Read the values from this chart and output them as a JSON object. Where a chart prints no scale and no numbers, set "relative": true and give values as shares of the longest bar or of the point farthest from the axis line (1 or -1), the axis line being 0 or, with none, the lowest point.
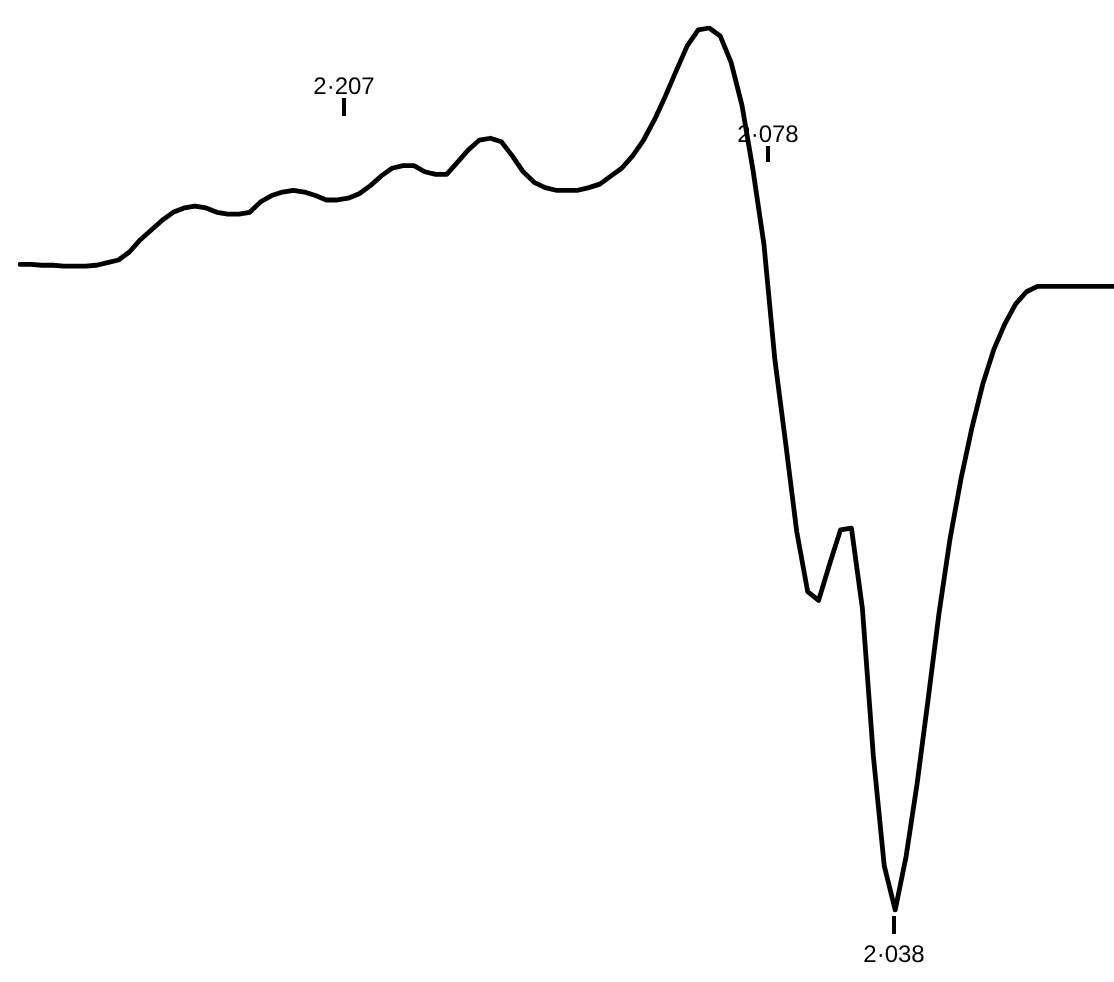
{
  "chart_data": {
    "type": "line",
    "relative": true,
    "line_style": "solid",
    "categories": [
      null,
      null,
      null,
      null,
      null,
      null,
      null,
      null,
      null,
      null,
      null,
      null,
      null,
      null,
      null,
      null,
      null,
      null,
      null,
      null,
      null,
      null,
      null,
      null,
      null,
      null,
      null,
      null,
      null,
      null,
      null,
      null,
      null,
      null,
      null,
      null,
      null,
      null,
      null,
      null,
      null,
      null,
      null,
      null,
      null,
      null,
      null,
      null,
      null,
      null,
      null,
      null,
      null,
      null,
      null,
      null,
      null,
      null,
      null,
      null,
      null,
      null,
      null,
      null,
      null,
      null,
      null,
      null,
      null,
      null,
      null,
      null,
      null,
      null,
      null,
      null,
      null,
      null,
      null,
      null,
      null,
      null,
      null,
      null,
      null,
      null,
      null,
      null,
      null,
      null,
      null,
      null,
      null,
      null,
      null,
      null,
      null,
      null,
      null,
      null,
      null
    ],
    "series": [
      {
        "color": "#000000",
        "values": [
          0.732,
          0.732,
          0.731,
          0.731,
          0.73,
          0.73,
          0.73,
          0.731,
          0.734,
          0.737,
          0.746,
          0.76,
          0.771,
          0.782,
          0.791,
          0.796,
          0.798,
          0.796,
          0.791,
          0.789,
          0.789,
          0.791,
          0.803,
          0.81,
          0.814,
          0.816,
          0.814,
          0.81,
          0.805,
          0.805,
          0.807,
          0.812,
          0.821,
          0.832,
          0.841,
          0.844,
          0.844,
          0.837,
          0.834,
          0.834,
          0.848,
          0.862,
          0.873,
          0.875,
          0.871,
          0.855,
          0.837,
          0.825,
          0.819,
          0.816,
          0.816,
          0.816,
          0.819,
          0.823,
          0.832,
          0.841,
          0.855,
          0.873,
          0.896,
          0.923,
          0.952,
          0.98,
          0.998,
          1,
          0.991,
          0.961,
          0.912,
          0.839,
          0.755,
          0.624,
          0.528,
          0.429,
          0.361,
          0.351,
          0.392,
          0.431,
          0.433,
          0.342,
          0.175,
          0.05,
          0,
          0.061,
          0.143,
          0.238,
          0.336,
          0.42,
          0.488,
          0.546,
          0.596,
          0.635,
          0.664,
          0.687,
          0.701,
          0.707,
          0.707,
          0.707,
          0.707,
          0.707,
          0.707,
          0.707,
          0.707
        ]
      }
    ],
    "annotations": [
      "2·207",
      "2·078",
      "2·038"
    ]
  }
}
